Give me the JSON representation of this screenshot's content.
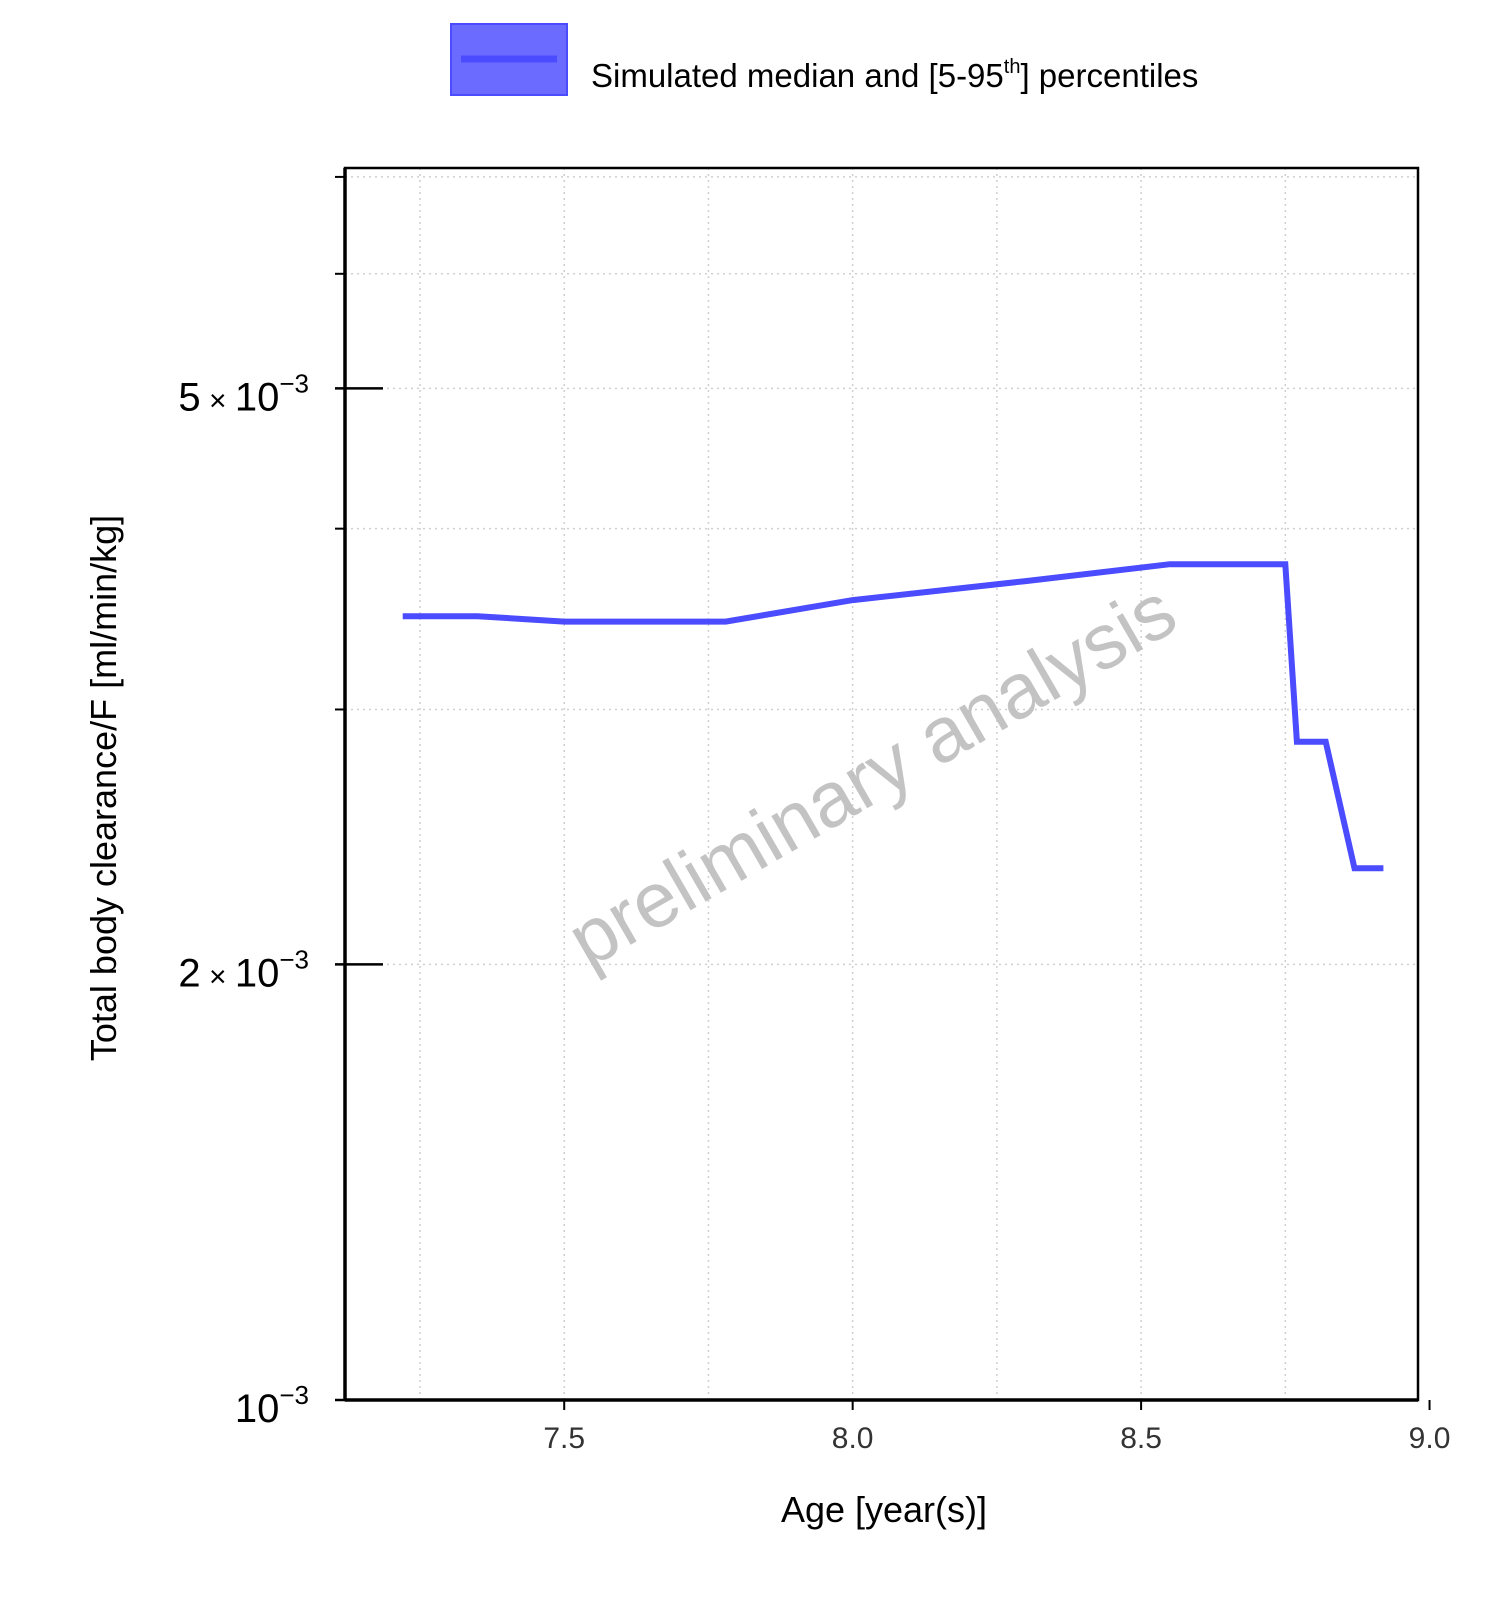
{
  "chart_data": {
    "type": "line",
    "legend": {
      "position": "top",
      "label_main": "Simulated median and [5-95",
      "label_sup": "th",
      "label_end": "] percentiles",
      "color": "#4B4BFF"
    },
    "xlabel": "Age [year(s)]",
    "ylabel": "Total body clearance/F [ml/min/kg]",
    "x_ticks": [
      {
        "value": 7.5,
        "label": "7.5"
      },
      {
        "value": 8.0,
        "label": "8.0"
      },
      {
        "value": 8.5,
        "label": "8.5"
      },
      {
        "value": 9.0,
        "label": "9.0"
      }
    ],
    "y_scale": "log",
    "y_ticks": [
      {
        "value": 0.001,
        "mant": "",
        "base": "10",
        "exp": "−3"
      },
      {
        "value": 0.002,
        "mant": "2",
        "base": "10",
        "exp": "−3"
      },
      {
        "value": 0.005,
        "mant": "5",
        "base": "10",
        "exp": "−3"
      }
    ],
    "y_minor_ticks": [
      0.003,
      0.004,
      0.006,
      0.007
    ],
    "xlim": [
      7.12,
      8.98
    ],
    "ylim": [
      0.001,
      0.0071
    ],
    "grid": true,
    "series": [
      {
        "name": "Simulated median",
        "color": "#4B4BFF",
        "x": [
          7.22,
          7.35,
          7.5,
          7.78,
          8.0,
          8.3,
          8.55,
          8.75,
          8.77,
          8.82,
          8.87,
          8.92
        ],
        "y": [
          0.00348,
          0.00348,
          0.00345,
          0.00345,
          0.00357,
          0.00368,
          0.00378,
          0.00378,
          0.00285,
          0.00285,
          0.00233,
          0.00233
        ]
      }
    ],
    "watermark": "preliminary analysis"
  }
}
